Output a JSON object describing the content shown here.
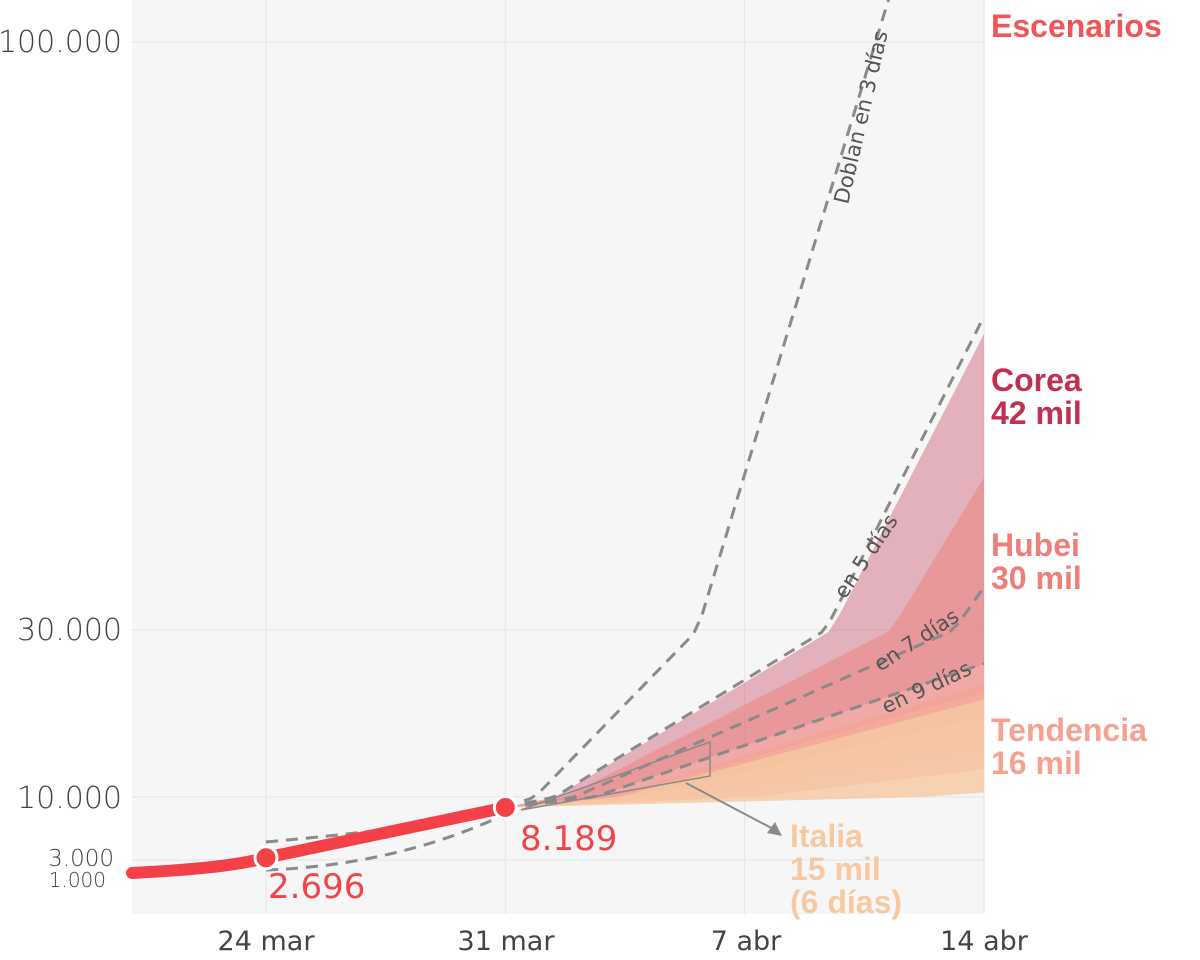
{
  "chart_data": {
    "type": "area",
    "y_scale": "log",
    "x_ticks": [
      "24 mar",
      "31 mar",
      "7 abr",
      "14 abr"
    ],
    "y_ticks": [
      "100.000",
      "30.000",
      "10.000",
      "3.000",
      "1.000"
    ],
    "grid": true,
    "colors": {
      "observed": "#f34147",
      "corea": "#c0304f",
      "hubei": "#ee7f78",
      "tendencia": "#f5a291",
      "italia": "#f6c9a3",
      "doubling": "#8a8a8a"
    },
    "observed": {
      "points": [
        {
          "label": "2.696",
          "value": 2696
        },
        {
          "label": "8.189",
          "value": 8189
        }
      ]
    },
    "doubling_curves": [
      {
        "name": "Doblan en 3 días",
        "days": 3
      },
      {
        "name": "en 5 días",
        "days": 5
      },
      {
        "name": "en 7 días",
        "days": 7
      },
      {
        "name": "en 9 días",
        "days": 9
      }
    ],
    "scenarios_title": "Escenarios",
    "scenarios": [
      {
        "name": "Corea",
        "value_label": "42 mil",
        "value": 42000
      },
      {
        "name": "Hubei",
        "value_label": "30 mil",
        "value": 30000
      },
      {
        "name": "Tendencia",
        "value_label": "16 mil",
        "value": 16000
      },
      {
        "name": "Italia",
        "value_label": "15 mil",
        "note": "(6 días)",
        "value": 15000
      }
    ]
  }
}
